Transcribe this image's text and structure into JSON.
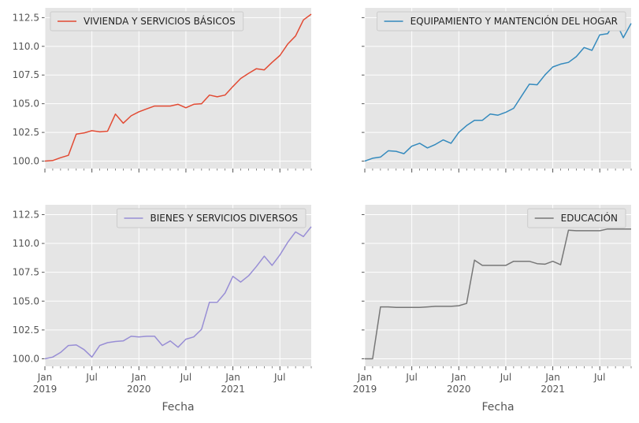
{
  "chart_data": [
    {
      "type": "line",
      "series": [
        {
          "name": "VIVIENDA Y SERVICIOS BÁSICOS",
          "color": "#E24A33",
          "values": [
            100.0,
            100.05,
            100.3,
            100.5,
            102.35,
            102.45,
            102.65,
            102.55,
            102.6,
            104.1,
            103.3,
            103.95,
            104.3,
            104.55,
            104.8,
            104.8,
            104.8,
            104.95,
            104.65,
            104.95,
            105.0,
            105.75,
            105.6,
            105.75,
            106.5,
            107.2,
            107.65,
            108.05,
            107.95,
            108.6,
            109.2,
            110.2,
            110.9,
            112.3,
            112.8
          ]
        }
      ],
      "legend": "top-left"
    },
    {
      "type": "line",
      "series": [
        {
          "name": "EQUIPAMIENTO Y MANTENCIÓN DEL HOGAR",
          "color": "#348ABD",
          "values": [
            100.0,
            100.25,
            100.35,
            100.9,
            100.85,
            100.65,
            101.3,
            101.55,
            101.15,
            101.45,
            101.85,
            101.55,
            102.5,
            103.1,
            103.55,
            103.55,
            104.1,
            104.0,
            104.25,
            104.6,
            105.65,
            106.7,
            106.65,
            107.5,
            108.2,
            108.45,
            108.6,
            109.1,
            109.9,
            109.65,
            111.0,
            111.1,
            112.2,
            110.75,
            112.0
          ]
        }
      ],
      "legend": "top-right"
    },
    {
      "type": "line",
      "series": [
        {
          "name": "BIENES Y SERVICIOS DIVERSOS",
          "color": "#988ED5",
          "values": [
            100.0,
            100.15,
            100.55,
            101.15,
            101.2,
            100.8,
            100.15,
            101.15,
            101.4,
            101.5,
            101.55,
            101.95,
            101.9,
            101.95,
            101.95,
            101.15,
            101.55,
            101.0,
            101.7,
            101.9,
            102.55,
            104.9,
            104.9,
            105.7,
            107.15,
            106.65,
            107.2,
            108.0,
            108.9,
            108.1,
            109.0,
            110.1,
            111.0,
            110.6,
            111.45
          ]
        }
      ],
      "legend": "top-right"
    },
    {
      "type": "line",
      "series": [
        {
          "name": "EDUCACIÓN",
          "color": "#777777",
          "values": [
            100.0,
            100.0,
            104.5,
            104.5,
            104.45,
            104.45,
            104.45,
            104.45,
            104.5,
            104.55,
            104.55,
            104.55,
            104.6,
            104.8,
            108.55,
            108.1,
            108.1,
            108.1,
            108.1,
            108.45,
            108.45,
            108.45,
            108.25,
            108.2,
            108.45,
            108.15,
            111.15,
            111.1,
            111.1,
            111.1,
            111.1,
            111.25,
            111.25,
            111.25,
            111.25
          ]
        }
      ],
      "legend": "top-right"
    }
  ],
  "shared": {
    "y_ticks": [
      "100.0",
      "102.5",
      "105.0",
      "107.5",
      "110.0",
      "112.5"
    ],
    "y_values": [
      100.0,
      102.5,
      105.0,
      107.5,
      110.0,
      112.5
    ],
    "ylim": [
      99.35,
      113.35
    ],
    "x_range_months": [
      "2019-01",
      "2021-11"
    ],
    "x_ticks": [
      {
        "month_index": 0,
        "label": "Jan",
        "year": "2019"
      },
      {
        "month_index": 6,
        "label": "Jul",
        "year": ""
      },
      {
        "month_index": 12,
        "label": "Jan",
        "year": "2020"
      },
      {
        "month_index": 18,
        "label": "Jul",
        "year": ""
      },
      {
        "month_index": 24,
        "label": "Jan",
        "year": "2021"
      },
      {
        "month_index": 30,
        "label": "Jul",
        "year": ""
      }
    ],
    "xlabel": "Fecha",
    "grid": true
  }
}
